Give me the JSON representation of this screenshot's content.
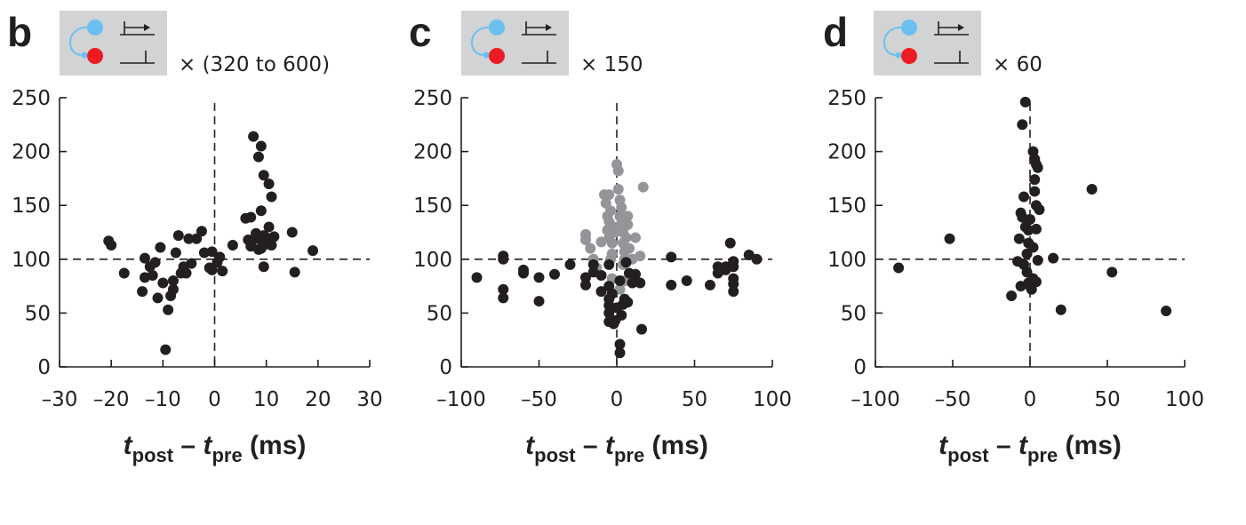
{
  "chart_data": [
    {
      "type": "scatter",
      "panel_label": "b",
      "multiplier": "× (320 to 600)",
      "xlabel": {
        "t1": "t",
        "s1": "post",
        "mid": " – ",
        "t2": "t",
        "s2": "pre",
        "unit": " (ms)"
      },
      "xlim": [
        -30,
        30
      ],
      "ylim": [
        0,
        250
      ],
      "xticks": [
        -30,
        -20,
        -10,
        0,
        10,
        20,
        30
      ],
      "xtick_labels": [
        "–30",
        "–20",
        "–10",
        "0",
        "10",
        "20",
        "30"
      ],
      "yticks": [
        0,
        50,
        100,
        150,
        200,
        250
      ],
      "ytick_labels": [
        "0",
        "50",
        "100",
        "150",
        "200",
        "250"
      ],
      "reference_lines": {
        "x": 0,
        "y": 100
      },
      "series": [
        {
          "color": "#231f20",
          "points": [
            [
              -20.5,
              117
            ],
            [
              -20,
              113
            ],
            [
              -17.5,
              87
            ],
            [
              -14,
              70
            ],
            [
              -13.5,
              101
            ],
            [
              -13.5,
              83
            ],
            [
              -12.5,
              93
            ],
            [
              -12,
              85
            ],
            [
              -11.5,
              97
            ],
            [
              -11,
              64
            ],
            [
              -10.5,
              111
            ],
            [
              -10,
              78
            ],
            [
              -9.5,
              16
            ],
            [
              -9,
              53
            ],
            [
              -8.5,
              66
            ],
            [
              -8,
              72
            ],
            [
              -8,
              80
            ],
            [
              -7.5,
              106
            ],
            [
              -7,
              122
            ],
            [
              -6.5,
              87
            ],
            [
              -6,
              93
            ],
            [
              -5.5,
              87
            ],
            [
              -5,
              119
            ],
            [
              -4.5,
              96
            ],
            [
              -3.5,
              119
            ],
            [
              -2.5,
              126
            ],
            [
              -2,
              106
            ],
            [
              -1,
              92
            ],
            [
              -0.5,
              107
            ],
            [
              -0.5,
              90
            ],
            [
              0.5,
              97
            ],
            [
              1,
              102
            ],
            [
              1.5,
              89
            ],
            [
              3.5,
              113
            ],
            [
              6,
              138
            ],
            [
              6.5,
              118
            ],
            [
              7,
              139
            ],
            [
              7,
              112
            ],
            [
              7.5,
              118
            ],
            [
              7.5,
              214
            ],
            [
              8,
              124
            ],
            [
              8.5,
              109
            ],
            [
              8.5,
              120
            ],
            [
              8.5,
              195
            ],
            [
              9,
              110
            ],
            [
              9,
              118
            ],
            [
              9,
              145
            ],
            [
              9,
              205
            ],
            [
              9.5,
              122
            ],
            [
              9.5,
              178
            ],
            [
              9.5,
              93
            ],
            [
              10,
              114
            ],
            [
              10,
              120
            ],
            [
              10.5,
              170
            ],
            [
              10.5,
              130
            ],
            [
              11,
              158
            ],
            [
              11,
              113
            ],
            [
              11.5,
              121
            ],
            [
              15,
              125
            ],
            [
              15.5,
              88
            ],
            [
              19,
              108
            ]
          ]
        }
      ]
    },
    {
      "type": "scatter",
      "panel_label": "c",
      "multiplier": "× 150",
      "xlabel": {
        "t1": "t",
        "s1": "post",
        "mid": " – ",
        "t2": "t",
        "s2": "pre",
        "unit": " (ms)"
      },
      "xlim": [
        -100,
        100
      ],
      "ylim": [
        0,
        250
      ],
      "xticks": [
        -100,
        -50,
        0,
        50,
        100
      ],
      "xtick_labels": [
        "–100",
        "–50",
        "0",
        "50",
        "100"
      ],
      "yticks": [
        0,
        50,
        100,
        150,
        200,
        250
      ],
      "ytick_labels": [
        "0",
        "50",
        "100",
        "150",
        "200",
        "250"
      ],
      "reference_lines": {
        "x": 0,
        "y": 100
      },
      "series": [
        {
          "color": "#939598",
          "points": [
            [
              -20,
              123
            ],
            [
              -20,
              118
            ],
            [
              -17,
              110
            ],
            [
              -15,
              100
            ],
            [
              -13,
              92
            ],
            [
              -10,
              116
            ],
            [
              -8,
              160
            ],
            [
              -7,
              152
            ],
            [
              -6,
              140
            ],
            [
              -6,
              127
            ],
            [
              -5,
              160
            ],
            [
              -5,
              135
            ],
            [
              -5,
              120
            ],
            [
              -4,
              145
            ],
            [
              -4,
              100
            ],
            [
              -3,
              115
            ],
            [
              -3,
              105
            ],
            [
              -2,
              130
            ],
            [
              -1,
              125
            ],
            [
              0,
              188
            ],
            [
              1,
              182
            ],
            [
              1,
              165
            ],
            [
              2,
              155
            ],
            [
              2,
              140
            ],
            [
              3,
              148
            ],
            [
              3,
              133
            ],
            [
              4,
              125
            ],
            [
              4,
              115
            ],
            [
              4,
              95
            ],
            [
              5,
              107
            ],
            [
              5,
              100
            ],
            [
              6,
              120
            ],
            [
              7,
              140
            ],
            [
              7,
              132
            ],
            [
              8,
              110
            ],
            [
              10,
              100
            ],
            [
              12,
              120
            ],
            [
              15,
              103
            ],
            [
              17,
              167
            ],
            [
              2,
              72
            ],
            [
              5,
              80
            ],
            [
              -3,
              82
            ]
          ]
        },
        {
          "color": "#231f20",
          "points": [
            [
              -90,
              83
            ],
            [
              -73,
              100
            ],
            [
              -73,
              103
            ],
            [
              -73,
              72
            ],
            [
              -73,
              64
            ],
            [
              -60,
              87
            ],
            [
              -60,
              90
            ],
            [
              -50,
              83
            ],
            [
              -50,
              61
            ],
            [
              -40,
              86
            ],
            [
              -30,
              95
            ],
            [
              -20,
              76
            ],
            [
              -20,
              83
            ],
            [
              -15,
              88
            ],
            [
              -15,
              95
            ],
            [
              -10,
              70
            ],
            [
              -10,
              85
            ],
            [
              -5,
              42
            ],
            [
              -5,
              50
            ],
            [
              -5,
              57
            ],
            [
              -5,
              63
            ],
            [
              -5,
              75
            ],
            [
              -5,
              95
            ],
            [
              -3,
              68
            ],
            [
              -2,
              40
            ],
            [
              -1,
              43
            ],
            [
              0,
              55
            ],
            [
              2,
              13
            ],
            [
              2,
              21
            ],
            [
              2,
              80
            ],
            [
              3,
              48
            ],
            [
              4,
              58
            ],
            [
              5,
              63
            ],
            [
              6,
              97
            ],
            [
              7,
              60
            ],
            [
              8,
              87
            ],
            [
              10,
              78
            ],
            [
              12,
              86
            ],
            [
              15,
              78
            ],
            [
              16,
              35
            ],
            [
              35,
              76
            ],
            [
              35,
              102
            ],
            [
              45,
              80
            ],
            [
              60,
              76
            ],
            [
              65,
              93
            ],
            [
              65,
              87
            ],
            [
              70,
              90
            ],
            [
              70,
              93
            ],
            [
              73,
              115
            ],
            [
              75,
              77
            ],
            [
              75,
              82
            ],
            [
              75,
              70
            ],
            [
              75,
              93
            ],
            [
              75,
              98
            ],
            [
              85,
              104
            ],
            [
              90,
              100
            ]
          ]
        }
      ]
    },
    {
      "type": "scatter",
      "panel_label": "d",
      "multiplier": "× 60",
      "xlabel": {
        "t1": "t",
        "s1": "post",
        "mid": " – ",
        "t2": "t",
        "s2": "pre",
        "unit": " (ms)"
      },
      "xlim": [
        -100,
        100
      ],
      "ylim": [
        0,
        250
      ],
      "xticks": [
        -100,
        -50,
        0,
        50,
        100
      ],
      "xtick_labels": [
        "–100",
        "–50",
        "0",
        "50",
        "100"
      ],
      "yticks": [
        0,
        50,
        100,
        150,
        200,
        250
      ],
      "ytick_labels": [
        "0",
        "50",
        "100",
        "150",
        "200",
        "250"
      ],
      "reference_lines": {
        "x": 0,
        "y": 100
      },
      "series": [
        {
          "color": "#231f20",
          "points": [
            [
              -85,
              92
            ],
            [
              -52,
              119
            ],
            [
              -12,
              66
            ],
            [
              -8,
              98
            ],
            [
              -7,
              119
            ],
            [
              -6,
              75
            ],
            [
              -6,
              143
            ],
            [
              -5,
              225
            ],
            [
              -5,
              139
            ],
            [
              -4,
              158
            ],
            [
              -4,
              95
            ],
            [
              -3,
              246
            ],
            [
              -3,
              130
            ],
            [
              -2,
              105
            ],
            [
              -2,
              88
            ],
            [
              -1,
              115
            ],
            [
              -1,
              127
            ],
            [
              -1,
              78
            ],
            [
              0,
              75
            ],
            [
              0,
              137
            ],
            [
              1,
              72
            ],
            [
              2,
              111
            ],
            [
              2,
              200
            ],
            [
              2,
              82
            ],
            [
              3,
              193
            ],
            [
              3,
              174
            ],
            [
              3,
              163
            ],
            [
              4,
              188
            ],
            [
              4,
              128
            ],
            [
              4,
              150
            ],
            [
              4,
              79
            ],
            [
              5,
              99
            ],
            [
              5,
              185
            ],
            [
              6,
              146
            ],
            [
              15,
              101
            ],
            [
              20,
              53
            ],
            [
              40,
              165
            ],
            [
              53,
              88
            ],
            [
              88,
              52
            ]
          ]
        }
      ]
    }
  ]
}
